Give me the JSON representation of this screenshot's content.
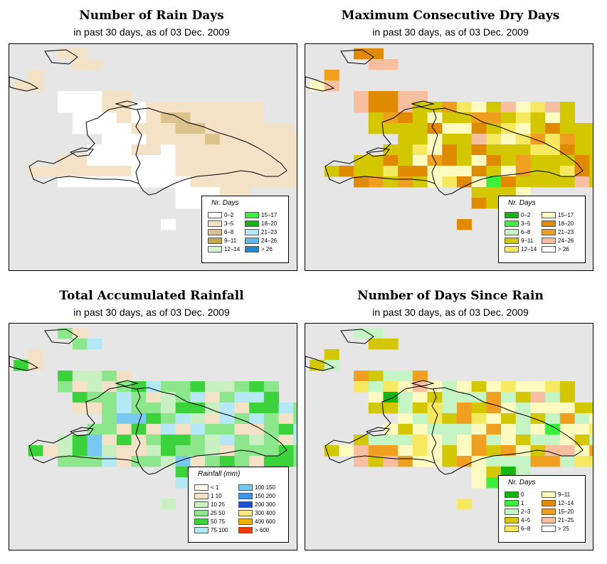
{
  "panels": [
    {
      "id": "rain",
      "title": "Number of Rain Days",
      "subtitle": "in past 30 days, as of  03 Dec. 2009",
      "legend": {
        "title": "Nr. Days",
        "items": [
          {
            "label": "0–2",
            "color": "#ffffff"
          },
          {
            "label": "3–5",
            "color": "#f3e2c6"
          },
          {
            "label": "6–8",
            "color": "#dcc38e"
          },
          {
            "label": "9–11",
            "color": "#c9a74c"
          },
          {
            "label": "12–14",
            "color": "#d2f7d2"
          },
          {
            "label": "15–17",
            "color": "#3ef03e"
          },
          {
            "label": "18–20",
            "color": "#14b414"
          },
          {
            "label": "21–23",
            "color": "#b7e9f7"
          },
          {
            "label": "24–26",
            "color": "#5fb6f0"
          },
          {
            "label": "> 26",
            "color": "#1f8ad1"
          }
        ]
      }
    },
    {
      "id": "dry",
      "title": "Maximum Consecutive Dry Days",
      "subtitle": "in past 30 days, as of  03 Dec. 2009",
      "legend": {
        "title": "Nr. Days",
        "items": [
          {
            "label": "0–2",
            "color": "#14b414"
          },
          {
            "label": "3–5",
            "color": "#3ef03e"
          },
          {
            "label": "6–8",
            "color": "#c5f5c5"
          },
          {
            "label": "9–11",
            "color": "#d3c800"
          },
          {
            "label": "12–14",
            "color": "#f6e860"
          },
          {
            "label": "15–17",
            "color": "#fffbc0"
          },
          {
            "label": "18–20",
            "color": "#e08a00"
          },
          {
            "label": "21–23",
            "color": "#f0a020"
          },
          {
            "label": "24–26",
            "color": "#f7bfa0"
          },
          {
            "label": "> 26",
            "color": "#ffffff"
          }
        ]
      }
    },
    {
      "id": "total",
      "title": "Total Accumulated Rainfall",
      "subtitle": "in past 30 days, as of  03 Dec. 2009",
      "legend": {
        "title": "Rainfall (mm)",
        "items": [
          {
            "label": "< 1",
            "color": "#fef6e8"
          },
          {
            "label": "1    10",
            "color": "#f3e2c6"
          },
          {
            "label": "10    25",
            "color": "#c8f0c0"
          },
          {
            "label": "25    50",
            "color": "#8ce68c"
          },
          {
            "label": "50    75",
            "color": "#3cd23c"
          },
          {
            "label": "75  100",
            "color": "#b4e8f5"
          },
          {
            "label": "100  150",
            "color": "#78c8f0"
          },
          {
            "label": "150  200",
            "color": "#3c96e6"
          },
          {
            "label": "200  300",
            "color": "#1e50d2"
          },
          {
            "label": "300  400",
            "color": "#fae682"
          },
          {
            "label": "400  600",
            "color": "#f0b400"
          },
          {
            "label": "> 600",
            "color": "#f03c00"
          }
        ]
      }
    },
    {
      "id": "since",
      "title": "Number of Days Since Rain",
      "subtitle": "in past 30 days, as of  03 Dec. 2009",
      "legend": {
        "title": "Nr. Days",
        "items": [
          {
            "label": "0",
            "color": "#14b414"
          },
          {
            "label": "1",
            "color": "#3ef03e"
          },
          {
            "label": "2–3",
            "color": "#c5f5c5"
          },
          {
            "label": "4–5",
            "color": "#d3c800"
          },
          {
            "label": "6–8",
            "color": "#f6e860"
          },
          {
            "label": "9–11",
            "color": "#fffbc0"
          },
          {
            "label": "12–14",
            "color": "#e08a00"
          },
          {
            "label": "15–20",
            "color": "#f0a020"
          },
          {
            "label": "21–25",
            "color": "#f7bfa0"
          },
          {
            "label": "> 25",
            "color": "#ffffff"
          }
        ]
      }
    }
  ]
}
